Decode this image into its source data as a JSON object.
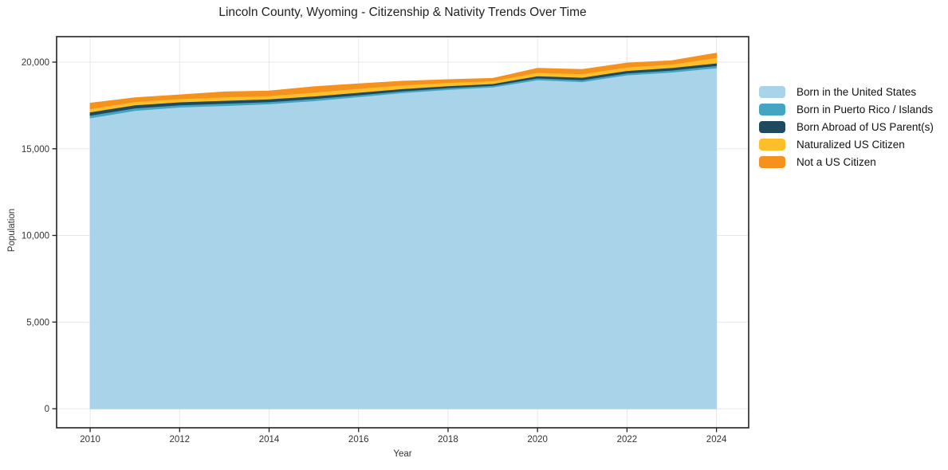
{
  "title": "Lincoln County, Wyoming - Citizenship & Nativity Trends Over Time",
  "axes": {
    "x_label": "Year",
    "y_label": "Population"
  },
  "colors": {
    "background": "#ffffff",
    "gridline": "#e7e7e7",
    "spine": "#222222",
    "tick_label": "#333333",
    "title_text": "#222222"
  },
  "chart_data": {
    "type": "area",
    "stacked": true,
    "title": "Lincoln County, Wyoming - Citizenship & Nativity Trends Over Time",
    "xlabel": "Year",
    "ylabel": "Population",
    "grid": true,
    "legend_position": "right-outside",
    "x": [
      2010,
      2011,
      2012,
      2013,
      2014,
      2015,
      2016,
      2017,
      2018,
      2019,
      2020,
      2021,
      2022,
      2023,
      2024
    ],
    "series": [
      {
        "name": "Born in the United States",
        "color": "#a8d3e8",
        "values": [
          16780,
          17210,
          17400,
          17490,
          17590,
          17770,
          18000,
          18240,
          18420,
          18560,
          18980,
          18870,
          19260,
          19420,
          19670
        ]
      },
      {
        "name": "Born in Puerto Rico / Islands",
        "color": "#44a5c2",
        "values": [
          150,
          140,
          130,
          130,
          120,
          120,
          110,
          100,
          95,
          90,
          100,
          110,
          110,
          115,
          125
        ]
      },
      {
        "name": "Born Abroad of US Parent(s)",
        "color": "#1f4a5e",
        "values": [
          190,
          180,
          170,
          170,
          160,
          150,
          140,
          130,
          115,
          110,
          130,
          140,
          140,
          145,
          155
        ]
      },
      {
        "name": "Naturalized US Citizen",
        "color": "#fcbf2a",
        "values": [
          190,
          190,
          185,
          195,
          190,
          215,
          230,
          210,
          190,
          160,
          190,
          200,
          205,
          200,
          310
        ]
      },
      {
        "name": "Not a US Citizen",
        "color": "#f5921e",
        "values": [
          320,
          220,
          225,
          295,
          270,
          325,
          270,
          220,
          170,
          140,
          240,
          250,
          235,
          200,
          260
        ]
      }
    ],
    "xticks": {
      "values": [
        2010,
        2012,
        2014,
        2016,
        2018,
        2020,
        2022,
        2024
      ],
      "labels": [
        "2010",
        "2012",
        "2014",
        "2016",
        "2018",
        "2020",
        "2022",
        "2024"
      ]
    },
    "yticks": {
      "values": [
        0,
        5000,
        10000,
        15000,
        20000
      ],
      "labels": [
        "0",
        "5,000",
        "10,000",
        "15,000",
        "20,000"
      ]
    },
    "xlim": [
      2009.25,
      2024.72
    ],
    "ylim": [
      -1100,
      21470
    ]
  }
}
